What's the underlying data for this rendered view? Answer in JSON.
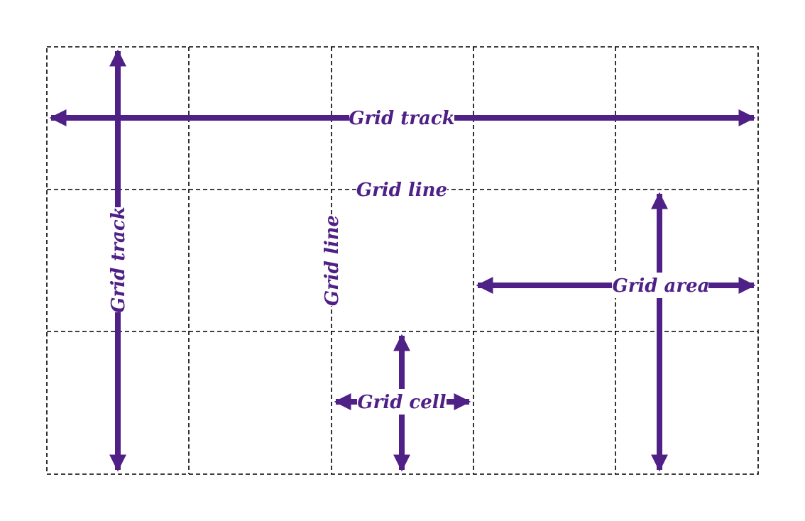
{
  "colors": {
    "accent": "#4f2086",
    "grid_line": "#000000",
    "background": "#ffffff"
  },
  "grid": {
    "columns": 5,
    "rows": 3
  },
  "labels": {
    "track_horizontal": "Grid track",
    "track_vertical": "Grid track",
    "line_horizontal": "Grid line",
    "line_vertical": "Grid line",
    "area": "Grid area",
    "cell": "Grid cell"
  }
}
